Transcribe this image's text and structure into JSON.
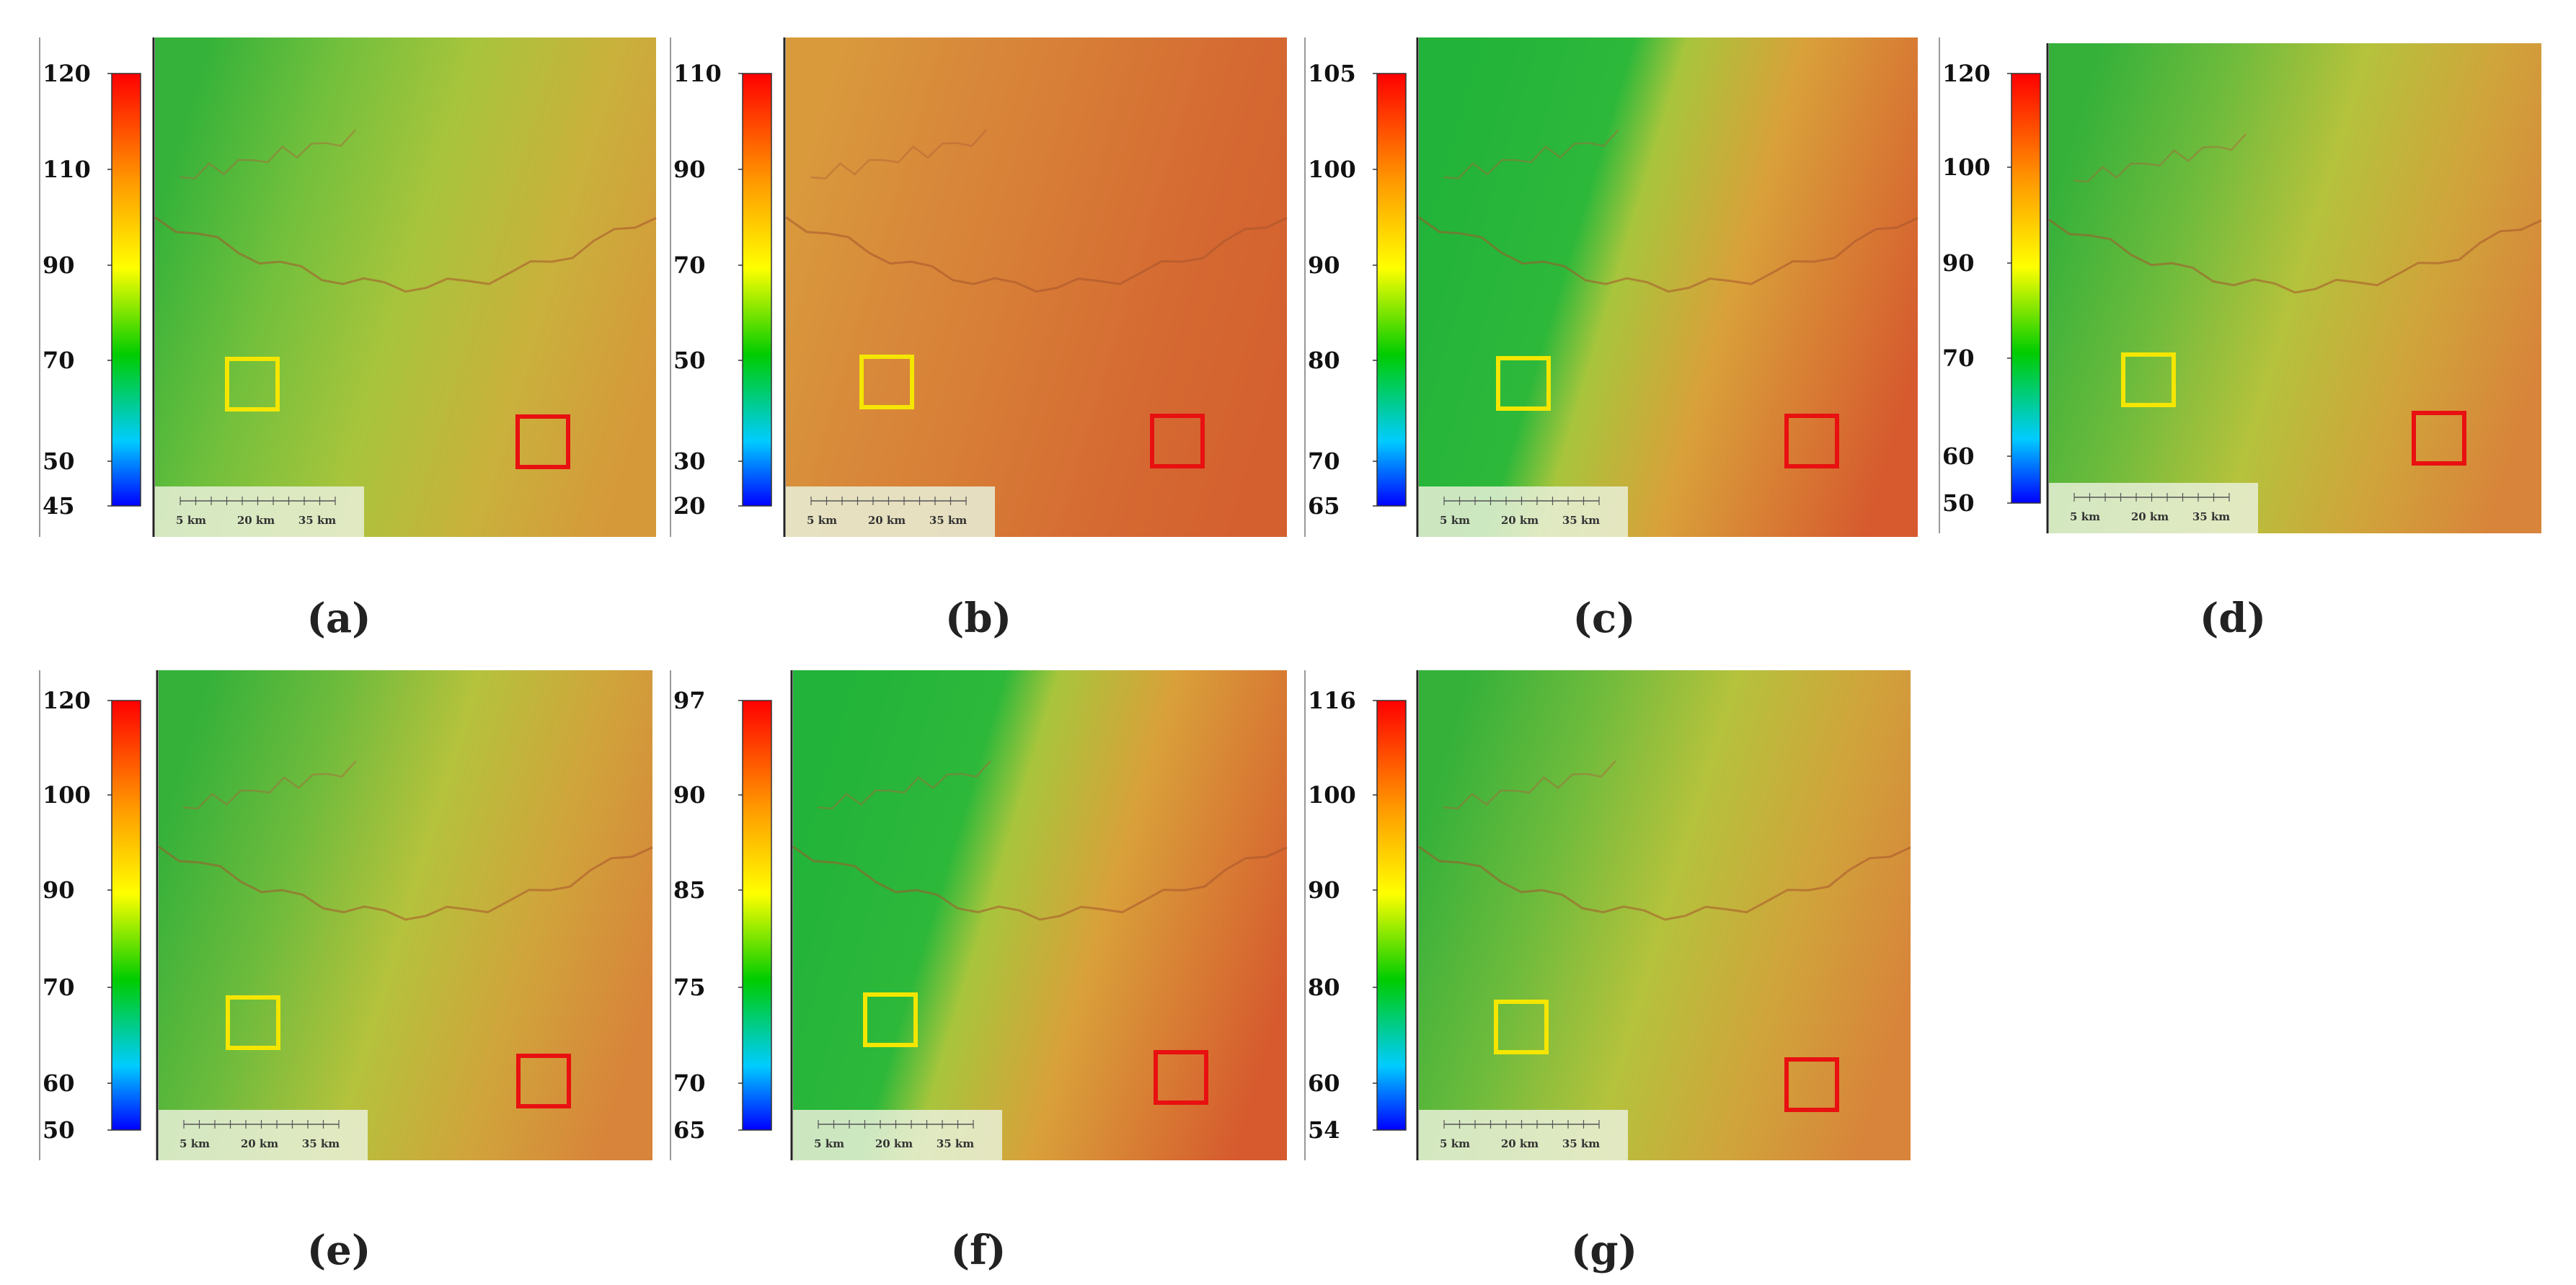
{
  "figure": {
    "panels": [
      {
        "id": "a",
        "caption": "(a)",
        "colorbar_ticks": [
          "120",
          "110",
          "90",
          "70",
          "50",
          "45"
        ],
        "scalebar_labels": [
          "5 km",
          "20 km",
          "35 km"
        ],
        "boxes": [
          "yellow",
          "red"
        ],
        "palette": "low"
      },
      {
        "id": "b",
        "caption": "(b)",
        "colorbar_ticks": [
          "110",
          "90",
          "70",
          "50",
          "30",
          "20"
        ],
        "scalebar_labels": [
          "5 km",
          "20 km",
          "35 km"
        ],
        "boxes": [
          "yellow",
          "red"
        ],
        "palette": "high"
      },
      {
        "id": "c",
        "caption": "(c)",
        "colorbar_ticks": [
          "105",
          "100",
          "90",
          "80",
          "70",
          "65"
        ],
        "scalebar_labels": [
          "5 km",
          "20 km",
          "35 km"
        ],
        "boxes": [
          "yellow",
          "red"
        ],
        "palette": "split"
      },
      {
        "id": "d",
        "caption": "(d)",
        "colorbar_ticks": [
          "120",
          "100",
          "90",
          "70",
          "60",
          "50"
        ],
        "scalebar_labels": [
          "5 km",
          "20 km",
          "35 km"
        ],
        "boxes": [
          "yellow",
          "red"
        ],
        "palette": "mid"
      },
      {
        "id": "e",
        "caption": "(e)",
        "colorbar_ticks": [
          "120",
          "100",
          "90",
          "70",
          "60",
          "50"
        ],
        "scalebar_labels": [
          "5 km",
          "20 km",
          "35 km"
        ],
        "boxes": [
          "yellow",
          "red"
        ],
        "palette": "mid"
      },
      {
        "id": "f",
        "caption": "(f)",
        "colorbar_ticks": [
          "97",
          "90",
          "85",
          "75",
          "70",
          "65"
        ],
        "scalebar_labels": [
          "5 km",
          "20 km",
          "35 km"
        ],
        "boxes": [
          "yellow",
          "red"
        ],
        "palette": "split"
      },
      {
        "id": "g",
        "caption": "(g)",
        "colorbar_ticks": [
          "116",
          "100",
          "90",
          "80",
          "60",
          "54"
        ],
        "scalebar_labels": [
          "5 km",
          "20 km",
          "35 km"
        ],
        "boxes": [
          "yellow",
          "red"
        ],
        "palette": "mid"
      }
    ],
    "colors": {
      "yellow_box": "#f5e600",
      "red_box": "#e81010"
    }
  }
}
